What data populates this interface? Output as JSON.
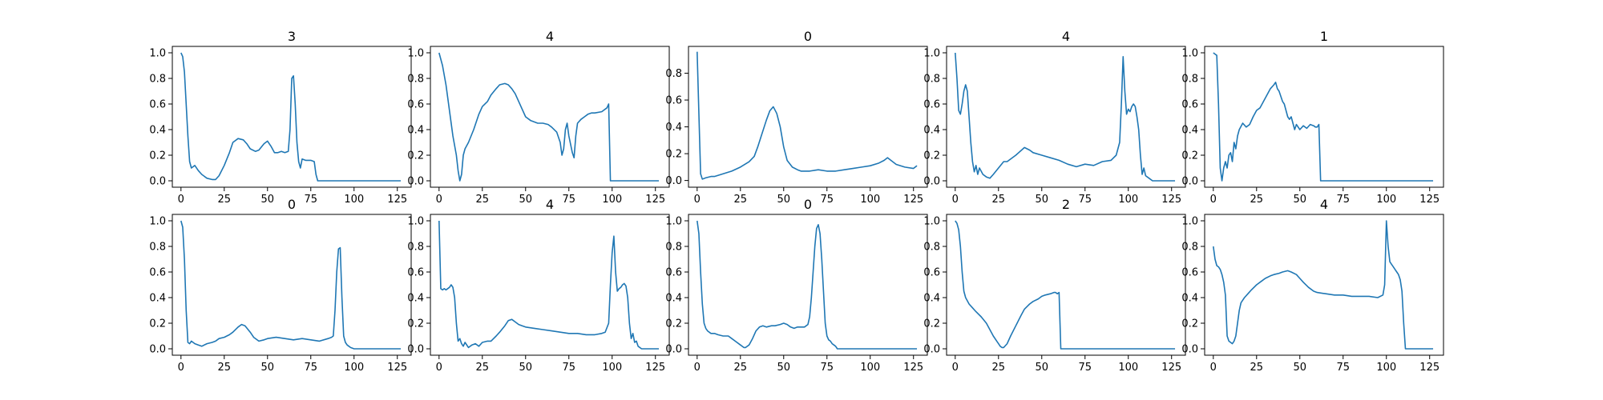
{
  "chart_data": [
    {
      "type": "line",
      "title": "3",
      "xlim": [
        -5,
        133
      ],
      "ylim": [
        -0.05,
        1.05
      ],
      "xticks": [
        0,
        25,
        50,
        75,
        100,
        125
      ],
      "yticks": [
        0.0,
        0.2,
        0.4,
        0.6,
        0.8,
        1.0
      ],
      "x": [
        0,
        1,
        2,
        3,
        4,
        5,
        6,
        8,
        10,
        12,
        15,
        18,
        20,
        22,
        25,
        28,
        30,
        33,
        36,
        38,
        40,
        43,
        45,
        48,
        50,
        52,
        54,
        56,
        58,
        60,
        62,
        63,
        64,
        65,
        66,
        67,
        68,
        69,
        70,
        72,
        75,
        77,
        78,
        79,
        80,
        85,
        90,
        100,
        110,
        120,
        127
      ],
      "values": [
        1.0,
        0.97,
        0.85,
        0.6,
        0.35,
        0.15,
        0.1,
        0.12,
        0.08,
        0.05,
        0.02,
        0.01,
        0.01,
        0.04,
        0.12,
        0.22,
        0.3,
        0.33,
        0.32,
        0.29,
        0.25,
        0.23,
        0.24,
        0.29,
        0.31,
        0.27,
        0.22,
        0.22,
        0.23,
        0.22,
        0.23,
        0.4,
        0.8,
        0.82,
        0.6,
        0.3,
        0.15,
        0.1,
        0.17,
        0.16,
        0.16,
        0.15,
        0.05,
        0.0,
        0.0,
        0.0,
        0.0,
        0.0,
        0.0,
        0.0,
        0.0
      ]
    },
    {
      "type": "line",
      "title": "4",
      "xlim": [
        -5,
        133
      ],
      "ylim": [
        -0.05,
        1.05
      ],
      "xticks": [
        0,
        25,
        50,
        75,
        100,
        125
      ],
      "yticks": [
        0.0,
        0.2,
        0.4,
        0.6,
        0.8,
        1.0
      ],
      "x": [
        0,
        2,
        4,
        6,
        8,
        10,
        11,
        12,
        13,
        14,
        15,
        17,
        20,
        23,
        25,
        28,
        30,
        33,
        35,
        38,
        40,
        42,
        44,
        46,
        48,
        50,
        53,
        55,
        57,
        60,
        63,
        65,
        68,
        70,
        71,
        72,
        73,
        74,
        75,
        77,
        78,
        79,
        80,
        82,
        84,
        86,
        88,
        90,
        94,
        97,
        98,
        99,
        100,
        110,
        120,
        127
      ],
      "values": [
        1.0,
        0.9,
        0.75,
        0.55,
        0.35,
        0.2,
        0.08,
        0.0,
        0.05,
        0.2,
        0.25,
        0.3,
        0.4,
        0.52,
        0.58,
        0.62,
        0.67,
        0.72,
        0.75,
        0.76,
        0.75,
        0.72,
        0.68,
        0.62,
        0.56,
        0.5,
        0.47,
        0.46,
        0.45,
        0.45,
        0.44,
        0.42,
        0.38,
        0.3,
        0.2,
        0.25,
        0.4,
        0.45,
        0.35,
        0.22,
        0.18,
        0.35,
        0.45,
        0.48,
        0.5,
        0.52,
        0.53,
        0.53,
        0.54,
        0.57,
        0.6,
        0.0,
        0.0,
        0.0,
        0.0,
        0.0
      ]
    },
    {
      "type": "line",
      "title": "0",
      "xlim": [
        -5,
        133
      ],
      "ylim": [
        -0.05,
        1.0
      ],
      "xticks": [
        0,
        25,
        50,
        75,
        100,
        125
      ],
      "yticks": [
        0.0,
        0.2,
        0.4,
        0.6,
        0.8
      ],
      "x": [
        0,
        1,
        2,
        3,
        5,
        8,
        10,
        15,
        20,
        25,
        30,
        33,
        35,
        37,
        40,
        42,
        44,
        46,
        48,
        50,
        52,
        55,
        58,
        60,
        65,
        70,
        75,
        80,
        85,
        90,
        95,
        100,
        105,
        108,
        110,
        112,
        115,
        120,
        125,
        127
      ],
      "values": [
        0.96,
        0.5,
        0.05,
        0.01,
        0.02,
        0.03,
        0.03,
        0.05,
        0.07,
        0.1,
        0.14,
        0.18,
        0.25,
        0.33,
        0.45,
        0.52,
        0.55,
        0.5,
        0.4,
        0.25,
        0.15,
        0.1,
        0.08,
        0.07,
        0.07,
        0.08,
        0.07,
        0.07,
        0.08,
        0.09,
        0.1,
        0.11,
        0.13,
        0.15,
        0.17,
        0.15,
        0.12,
        0.1,
        0.09,
        0.11
      ]
    },
    {
      "type": "line",
      "title": "4",
      "xlim": [
        -5,
        133
      ],
      "ylim": [
        -0.05,
        1.05
      ],
      "xticks": [
        0,
        25,
        50,
        75,
        100,
        125
      ],
      "yticks": [
        0.0,
        0.2,
        0.4,
        0.6,
        0.8,
        1.0
      ],
      "x": [
        0,
        1,
        2,
        3,
        4,
        5,
        6,
        7,
        8,
        9,
        10,
        11,
        12,
        13,
        14,
        16,
        18,
        20,
        22,
        25,
        28,
        30,
        35,
        40,
        43,
        45,
        50,
        55,
        60,
        65,
        70,
        75,
        80,
        85,
        90,
        93,
        95,
        96,
        97,
        98,
        99,
        100,
        101,
        102,
        103,
        104,
        105,
        106,
        107,
        108,
        109,
        110,
        112,
        114,
        116,
        118,
        120,
        125,
        127
      ],
      "values": [
        1.0,
        0.8,
        0.55,
        0.52,
        0.6,
        0.7,
        0.75,
        0.7,
        0.5,
        0.3,
        0.15,
        0.07,
        0.12,
        0.05,
        0.1,
        0.05,
        0.03,
        0.02,
        0.05,
        0.1,
        0.15,
        0.15,
        0.2,
        0.26,
        0.24,
        0.22,
        0.2,
        0.18,
        0.16,
        0.13,
        0.11,
        0.13,
        0.12,
        0.15,
        0.16,
        0.2,
        0.3,
        0.6,
        0.97,
        0.7,
        0.52,
        0.56,
        0.54,
        0.58,
        0.6,
        0.58,
        0.5,
        0.4,
        0.2,
        0.05,
        0.1,
        0.04,
        0.02,
        0.0,
        0.0,
        0.0,
        0.0,
        0.0,
        0.0
      ]
    },
    {
      "type": "line",
      "title": "1",
      "xlim": [
        -5,
        133
      ],
      "ylim": [
        -0.05,
        1.05
      ],
      "xticks": [
        0,
        25,
        50,
        75,
        100,
        125
      ],
      "yticks": [
        0.0,
        0.2,
        0.4,
        0.6,
        0.8,
        1.0
      ],
      "x": [
        0,
        1,
        2,
        3,
        4,
        5,
        6,
        7,
        8,
        9,
        10,
        11,
        12,
        13,
        14,
        15,
        17,
        19,
        21,
        23,
        25,
        27,
        29,
        31,
        33,
        35,
        36,
        37,
        38,
        39,
        40,
        41,
        42,
        43,
        44,
        45,
        46,
        47,
        48,
        50,
        52,
        54,
        56,
        58,
        59,
        60,
        61,
        62,
        64,
        70,
        80,
        90,
        100,
        110,
        120,
        127
      ],
      "values": [
        1.0,
        0.99,
        0.98,
        0.6,
        0.1,
        0.0,
        0.1,
        0.15,
        0.1,
        0.2,
        0.22,
        0.15,
        0.3,
        0.25,
        0.35,
        0.4,
        0.45,
        0.42,
        0.44,
        0.5,
        0.55,
        0.57,
        0.62,
        0.67,
        0.72,
        0.75,
        0.77,
        0.72,
        0.7,
        0.66,
        0.62,
        0.6,
        0.55,
        0.5,
        0.48,
        0.5,
        0.45,
        0.4,
        0.44,
        0.4,
        0.43,
        0.41,
        0.44,
        0.43,
        0.42,
        0.42,
        0.44,
        0.0,
        0.0,
        0.0,
        0.0,
        0.0,
        0.0,
        0.0,
        0.0,
        0.0
      ]
    },
    {
      "type": "line",
      "title": "0",
      "xlim": [
        -5,
        133
      ],
      "ylim": [
        -0.05,
        1.05
      ],
      "xticks": [
        0,
        25,
        50,
        75,
        100,
        125
      ],
      "yticks": [
        0.0,
        0.2,
        0.4,
        0.6,
        0.8,
        1.0
      ],
      "x": [
        0,
        1,
        2,
        3,
        4,
        5,
        6,
        8,
        10,
        12,
        15,
        18,
        20,
        22,
        25,
        28,
        30,
        33,
        35,
        37,
        40,
        42,
        45,
        48,
        50,
        55,
        60,
        65,
        70,
        75,
        80,
        85,
        87,
        88,
        89,
        90,
        91,
        92,
        93,
        94,
        95,
        96,
        97,
        98,
        100,
        105,
        110,
        120,
        127
      ],
      "values": [
        1.0,
        0.95,
        0.7,
        0.3,
        0.05,
        0.04,
        0.06,
        0.04,
        0.03,
        0.02,
        0.04,
        0.05,
        0.06,
        0.08,
        0.09,
        0.11,
        0.13,
        0.17,
        0.19,
        0.18,
        0.13,
        0.09,
        0.06,
        0.07,
        0.08,
        0.09,
        0.08,
        0.07,
        0.08,
        0.07,
        0.06,
        0.08,
        0.09,
        0.1,
        0.3,
        0.6,
        0.78,
        0.79,
        0.4,
        0.1,
        0.05,
        0.03,
        0.02,
        0.01,
        0.0,
        0.0,
        0.0,
        0.0,
        0.0
      ]
    },
    {
      "type": "line",
      "title": "4",
      "xlim": [
        -5,
        133
      ],
      "ylim": [
        -0.05,
        1.05
      ],
      "xticks": [
        0,
        25,
        50,
        75,
        100,
        125
      ],
      "yticks": [
        0.0,
        0.2,
        0.4,
        0.6,
        0.8,
        1.0
      ],
      "x": [
        0,
        1,
        2,
        3,
        4,
        5,
        6,
        7,
        8,
        9,
        10,
        11,
        12,
        13,
        14,
        15,
        17,
        19,
        21,
        23,
        25,
        28,
        30,
        33,
        35,
        38,
        40,
        42,
        44,
        46,
        48,
        50,
        55,
        60,
        65,
        70,
        75,
        80,
        85,
        90,
        94,
        96,
        98,
        99,
        100,
        101,
        102,
        103,
        104,
        105,
        106,
        107,
        108,
        109,
        110,
        111,
        112,
        113,
        114,
        115,
        117,
        119,
        121,
        124,
        127
      ],
      "values": [
        1.0,
        0.47,
        0.46,
        0.47,
        0.46,
        0.47,
        0.48,
        0.5,
        0.48,
        0.4,
        0.2,
        0.06,
        0.08,
        0.04,
        0.02,
        0.05,
        0.01,
        0.03,
        0.04,
        0.02,
        0.05,
        0.06,
        0.06,
        0.1,
        0.13,
        0.18,
        0.22,
        0.23,
        0.21,
        0.19,
        0.18,
        0.17,
        0.16,
        0.15,
        0.14,
        0.13,
        0.12,
        0.12,
        0.11,
        0.11,
        0.12,
        0.13,
        0.2,
        0.5,
        0.75,
        0.88,
        0.6,
        0.45,
        0.47,
        0.48,
        0.5,
        0.51,
        0.49,
        0.4,
        0.2,
        0.08,
        0.12,
        0.05,
        0.06,
        0.02,
        0.0,
        0.0,
        0.0,
        0.0,
        0.0
      ]
    },
    {
      "type": "line",
      "title": "0",
      "xlim": [
        -5,
        133
      ],
      "ylim": [
        -0.05,
        1.05
      ],
      "xticks": [
        0,
        25,
        50,
        75,
        100,
        125
      ],
      "yticks": [
        0.0,
        0.2,
        0.4,
        0.6,
        0.8,
        1.0
      ],
      "x": [
        0,
        1,
        2,
        3,
        4,
        5,
        6,
        8,
        10,
        12,
        15,
        18,
        20,
        22,
        25,
        27,
        28,
        30,
        32,
        34,
        36,
        38,
        40,
        43,
        45,
        48,
        50,
        52,
        54,
        56,
        58,
        60,
        62,
        64,
        65,
        66,
        67,
        68,
        69,
        70,
        71,
        72,
        73,
        74,
        75,
        76,
        77,
        78,
        79,
        80,
        81,
        83,
        85,
        90,
        100,
        110,
        120,
        127
      ],
      "values": [
        1.0,
        0.9,
        0.6,
        0.35,
        0.2,
        0.16,
        0.14,
        0.12,
        0.12,
        0.11,
        0.1,
        0.1,
        0.08,
        0.06,
        0.03,
        0.01,
        0.01,
        0.03,
        0.08,
        0.14,
        0.17,
        0.18,
        0.17,
        0.18,
        0.18,
        0.19,
        0.2,
        0.19,
        0.17,
        0.16,
        0.17,
        0.17,
        0.17,
        0.19,
        0.25,
        0.4,
        0.6,
        0.8,
        0.94,
        0.97,
        0.9,
        0.7,
        0.45,
        0.2,
        0.1,
        0.07,
        0.06,
        0.04,
        0.03,
        0.02,
        0.0,
        0.0,
        0.0,
        0.0,
        0.0,
        0.0,
        0.0,
        0.0
      ]
    },
    {
      "type": "line",
      "title": "2",
      "xlim": [
        -5,
        133
      ],
      "ylim": [
        -0.05,
        1.05
      ],
      "xticks": [
        0,
        25,
        50,
        75,
        100,
        125
      ],
      "yticks": [
        0.0,
        0.2,
        0.4,
        0.6,
        0.8,
        1.0
      ],
      "x": [
        0,
        1,
        2,
        3,
        4,
        5,
        6,
        8,
        10,
        12,
        15,
        18,
        20,
        22,
        24,
        25,
        26,
        27,
        28,
        30,
        32,
        35,
        38,
        40,
        43,
        45,
        48,
        50,
        52,
        55,
        57,
        58,
        59,
        60,
        61,
        62,
        65,
        70,
        80,
        90,
        100,
        110,
        120,
        127
      ],
      "values": [
        1.0,
        0.98,
        0.93,
        0.8,
        0.6,
        0.45,
        0.4,
        0.35,
        0.32,
        0.29,
        0.25,
        0.2,
        0.15,
        0.1,
        0.06,
        0.04,
        0.02,
        0.01,
        0.01,
        0.04,
        0.1,
        0.18,
        0.26,
        0.31,
        0.35,
        0.37,
        0.39,
        0.41,
        0.42,
        0.43,
        0.44,
        0.44,
        0.43,
        0.44,
        0.0,
        0.0,
        0.0,
        0.0,
        0.0,
        0.0,
        0.0,
        0.0,
        0.0,
        0.0
      ]
    },
    {
      "type": "line",
      "title": "4",
      "xlim": [
        -5,
        133
      ],
      "ylim": [
        -0.05,
        1.05
      ],
      "xticks": [
        0,
        25,
        50,
        75,
        100,
        125
      ],
      "yticks": [
        0.0,
        0.2,
        0.4,
        0.6,
        0.8,
        1.0
      ],
      "x": [
        0,
        1,
        2,
        3,
        4,
        5,
        6,
        7,
        8,
        9,
        10,
        11,
        12,
        13,
        14,
        15,
        16,
        17,
        18,
        20,
        22,
        25,
        28,
        30,
        33,
        35,
        38,
        40,
        43,
        45,
        48,
        50,
        52,
        55,
        58,
        60,
        65,
        70,
        75,
        80,
        85,
        90,
        95,
        98,
        99,
        100,
        101,
        102,
        103,
        104,
        105,
        106,
        107,
        108,
        109,
        110,
        111,
        112,
        114,
        118,
        122,
        127
      ],
      "values": [
        0.8,
        0.7,
        0.65,
        0.64,
        0.62,
        0.58,
        0.52,
        0.42,
        0.1,
        0.06,
        0.05,
        0.04,
        0.06,
        0.1,
        0.2,
        0.3,
        0.36,
        0.38,
        0.4,
        0.43,
        0.46,
        0.5,
        0.53,
        0.55,
        0.57,
        0.58,
        0.59,
        0.6,
        0.61,
        0.6,
        0.58,
        0.55,
        0.52,
        0.48,
        0.45,
        0.44,
        0.43,
        0.42,
        0.42,
        0.41,
        0.41,
        0.41,
        0.4,
        0.42,
        0.5,
        1.0,
        0.8,
        0.68,
        0.66,
        0.64,
        0.62,
        0.6,
        0.58,
        0.54,
        0.45,
        0.2,
        0.0,
        0.0,
        0.0,
        0.0,
        0.0,
        0.0
      ]
    }
  ],
  "style": {
    "line_color": "#1f77b4",
    "axis_color": "#000000",
    "background": "#ffffff"
  }
}
